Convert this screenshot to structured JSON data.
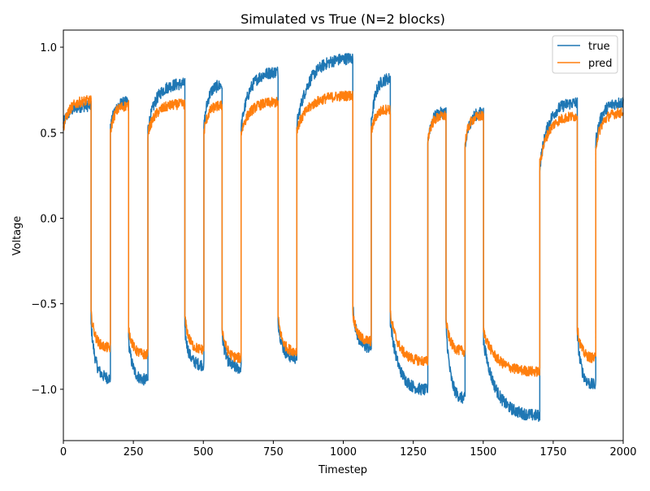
{
  "chart_data": {
    "type": "line",
    "title": "Simulated vs True (N=2 blocks)",
    "xlabel": "Timestep",
    "ylabel": "Voltage",
    "xlim": [
      0,
      2000
    ],
    "ylim": [
      -1.3,
      1.1
    ],
    "x_ticks": [
      0,
      250,
      500,
      750,
      1000,
      1250,
      1500,
      1750,
      2000
    ],
    "x_tick_labels": [
      "0",
      "250",
      "500",
      "750",
      "1000",
      "1250",
      "1500",
      "1750",
      "2000"
    ],
    "y_ticks": [
      -1.0,
      -0.5,
      0.0,
      0.5,
      1.0
    ],
    "y_tick_labels": [
      "−1.0",
      "−0.5",
      "0.0",
      "0.5",
      "1.0"
    ],
    "grid": false,
    "legend_position": "top-right",
    "series": [
      {
        "name": "true",
        "color": "#1f77b4",
        "segments": [
          {
            "x0": 0,
            "x1": 99,
            "y0": 0.55,
            "y1": 0.66
          },
          {
            "x0": 99,
            "x1": 168,
            "y0": -0.62,
            "y1": -0.94
          },
          {
            "x0": 168,
            "x1": 233,
            "y0": 0.52,
            "y1": 0.68
          },
          {
            "x0": 233,
            "x1": 302,
            "y0": -0.72,
            "y1": -0.95
          },
          {
            "x0": 302,
            "x1": 434,
            "y0": 0.52,
            "y1": 0.79
          },
          {
            "x0": 434,
            "x1": 502,
            "y0": -0.66,
            "y1": -0.86
          },
          {
            "x0": 502,
            "x1": 567,
            "y0": 0.53,
            "y1": 0.78
          },
          {
            "x0": 567,
            "x1": 635,
            "y0": -0.68,
            "y1": -0.88
          },
          {
            "x0": 635,
            "x1": 767,
            "y0": 0.53,
            "y1": 0.86
          },
          {
            "x0": 767,
            "x1": 834,
            "y0": -0.6,
            "y1": -0.82
          },
          {
            "x0": 834,
            "x1": 1034,
            "y0": 0.55,
            "y1": 0.94
          },
          {
            "x0": 1034,
            "x1": 1100,
            "y0": -0.52,
            "y1": -0.76
          },
          {
            "x0": 1100,
            "x1": 1168,
            "y0": 0.55,
            "y1": 0.82
          },
          {
            "x0": 1168,
            "x1": 1302,
            "y0": -0.6,
            "y1": -1.01
          },
          {
            "x0": 1302,
            "x1": 1367,
            "y0": 0.46,
            "y1": 0.62
          },
          {
            "x0": 1367,
            "x1": 1435,
            "y0": -0.62,
            "y1": -1.06
          },
          {
            "x0": 1435,
            "x1": 1501,
            "y0": 0.4,
            "y1": 0.62
          },
          {
            "x0": 1501,
            "x1": 1702,
            "y0": -0.72,
            "y1": -1.16
          },
          {
            "x0": 1702,
            "x1": 1836,
            "y0": 0.3,
            "y1": 0.68
          },
          {
            "x0": 1836,
            "x1": 1902,
            "y0": -0.68,
            "y1": -0.98
          },
          {
            "x0": 1902,
            "x1": 2000,
            "y0": 0.45,
            "y1": 0.68
          }
        ]
      },
      {
        "name": "pred",
        "color": "#ff7f0e",
        "segments": [
          {
            "x0": 0,
            "x1": 99,
            "y0": 0.53,
            "y1": 0.69
          },
          {
            "x0": 99,
            "x1": 168,
            "y0": -0.56,
            "y1": -0.76
          },
          {
            "x0": 168,
            "x1": 233,
            "y0": 0.5,
            "y1": 0.66
          },
          {
            "x0": 233,
            "x1": 302,
            "y0": -0.64,
            "y1": -0.8
          },
          {
            "x0": 302,
            "x1": 434,
            "y0": 0.5,
            "y1": 0.67
          },
          {
            "x0": 434,
            "x1": 502,
            "y0": -0.58,
            "y1": -0.77
          },
          {
            "x0": 502,
            "x1": 567,
            "y0": 0.5,
            "y1": 0.66
          },
          {
            "x0": 567,
            "x1": 635,
            "y0": -0.64,
            "y1": -0.82
          },
          {
            "x0": 635,
            "x1": 767,
            "y0": 0.5,
            "y1": 0.68
          },
          {
            "x0": 767,
            "x1": 834,
            "y0": -0.58,
            "y1": -0.78
          },
          {
            "x0": 834,
            "x1": 1034,
            "y0": 0.52,
            "y1": 0.72
          },
          {
            "x0": 1034,
            "x1": 1100,
            "y0": -0.55,
            "y1": -0.72
          },
          {
            "x0": 1100,
            "x1": 1168,
            "y0": 0.5,
            "y1": 0.64
          },
          {
            "x0": 1168,
            "x1": 1302,
            "y0": -0.56,
            "y1": -0.84
          },
          {
            "x0": 1302,
            "x1": 1367,
            "y0": 0.46,
            "y1": 0.6
          },
          {
            "x0": 1367,
            "x1": 1435,
            "y0": -0.6,
            "y1": -0.78
          },
          {
            "x0": 1435,
            "x1": 1501,
            "y0": 0.44,
            "y1": 0.6
          },
          {
            "x0": 1501,
            "x1": 1702,
            "y0": -0.66,
            "y1": -0.9
          },
          {
            "x0": 1702,
            "x1": 1836,
            "y0": 0.32,
            "y1": 0.6
          },
          {
            "x0": 1836,
            "x1": 1902,
            "y0": -0.64,
            "y1": -0.82
          },
          {
            "x0": 1902,
            "x1": 2000,
            "y0": 0.42,
            "y1": 0.62
          }
        ]
      }
    ]
  }
}
